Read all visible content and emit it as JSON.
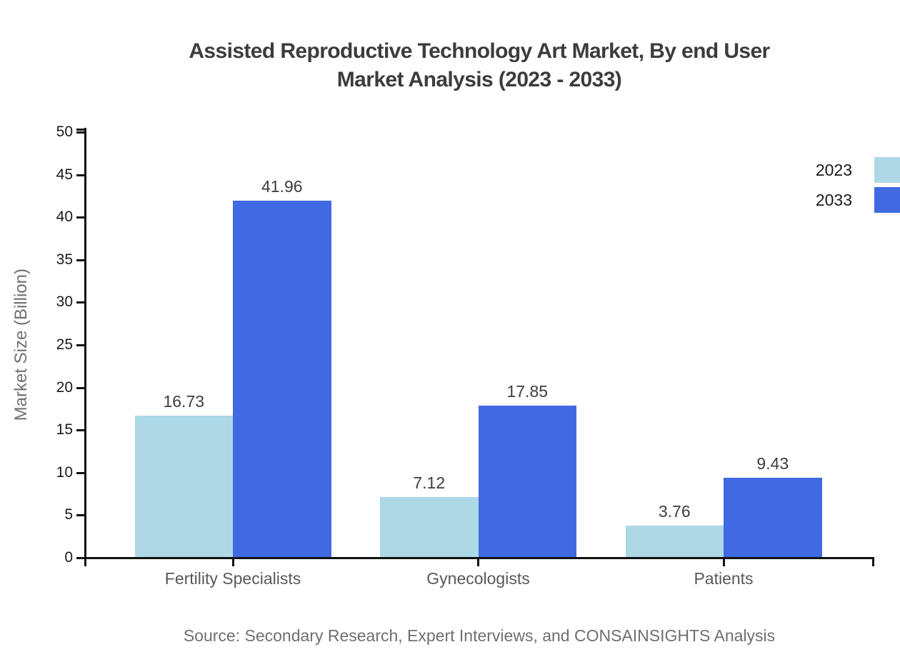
{
  "page": {
    "background": "#ffffff"
  },
  "chart_data": {
    "type": "bar",
    "title_line1": "Assisted Reproductive Technology Art Market, By end User",
    "title_line2": "Market Analysis (2023 - 2033)",
    "ylabel": "Market Size (Billion)",
    "categories": [
      "Fertility Specialists",
      "Gynecologists",
      "Patients"
    ],
    "series": [
      {
        "name": "2023",
        "color": "#ADD8E6",
        "values": [
          16.73,
          7.12,
          3.76
        ]
      },
      {
        "name": "2033",
        "color": "#4169E1",
        "values": [
          41.96,
          17.85,
          9.43
        ]
      }
    ],
    "value_labels_shown": true,
    "ylim": [
      0,
      50
    ],
    "yticks": [
      0,
      5,
      10,
      15,
      20,
      25,
      30,
      35,
      40,
      45,
      50
    ],
    "grid": false,
    "legend_position": "upper-right-outside-clipped",
    "source": "Source: Secondary Research, Expert Interviews, and CONSAINSIGHTS Analysis",
    "colors": {
      "axis": "#111111",
      "title_text": "#3c3c3c",
      "tick_text": "#1a1a1a",
      "category_text": "#595959",
      "value_text": "#3d3d3d",
      "muted_text": "#6f6f6f",
      "background": "#ffffff"
    }
  }
}
